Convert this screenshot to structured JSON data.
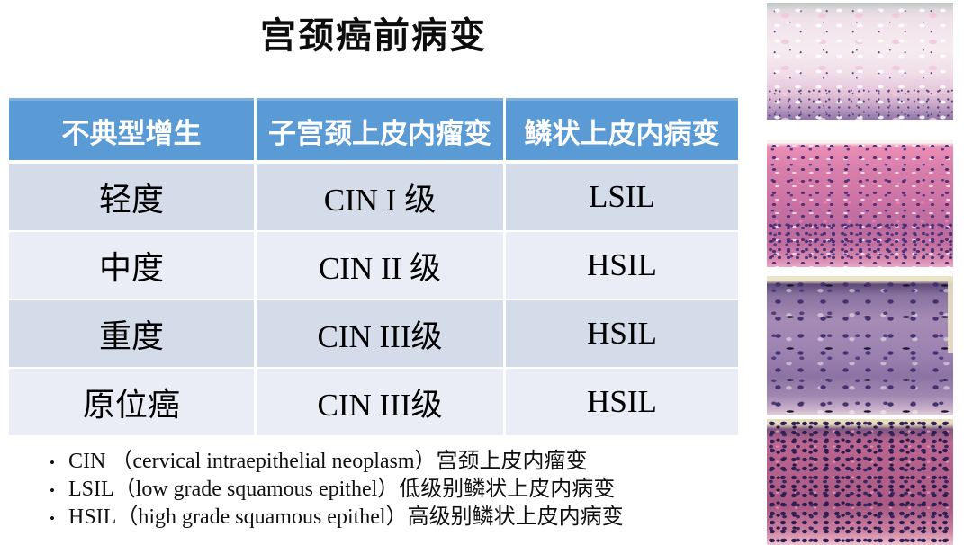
{
  "title": "宫颈癌前病变",
  "bullet_char": "•",
  "table": {
    "headers": [
      "不典型增生",
      "子宫颈上皮内瘤变",
      "鳞状上皮内病变"
    ],
    "rows": [
      {
        "cells": [
          "轻度",
          "CIN I 级",
          "LSIL"
        ]
      },
      {
        "cells": [
          "中度",
          "CIN II 级",
          "HSIL"
        ]
      },
      {
        "cells": [
          "重度",
          "CIN III级",
          "HSIL"
        ]
      },
      {
        "cells": [
          "原位癌",
          "CIN III级",
          "HSIL"
        ]
      }
    ]
  },
  "notes": [
    "CIN （cervical intraepithelial neoplasm）宫颈上皮内瘤变",
    "LSIL（low grade squamous epithel）低级别鳞状上皮内病变",
    "HSIL（high grade squamous epithel）高级别鳞状上皮内病变"
  ],
  "colors": {
    "header_bg": "#5B9BD5",
    "header_text": "#FFFFFF",
    "row_odd_bg": "#D4DBE9",
    "row_even_bg": "#EAEDF5",
    "body_text": "#000000"
  }
}
